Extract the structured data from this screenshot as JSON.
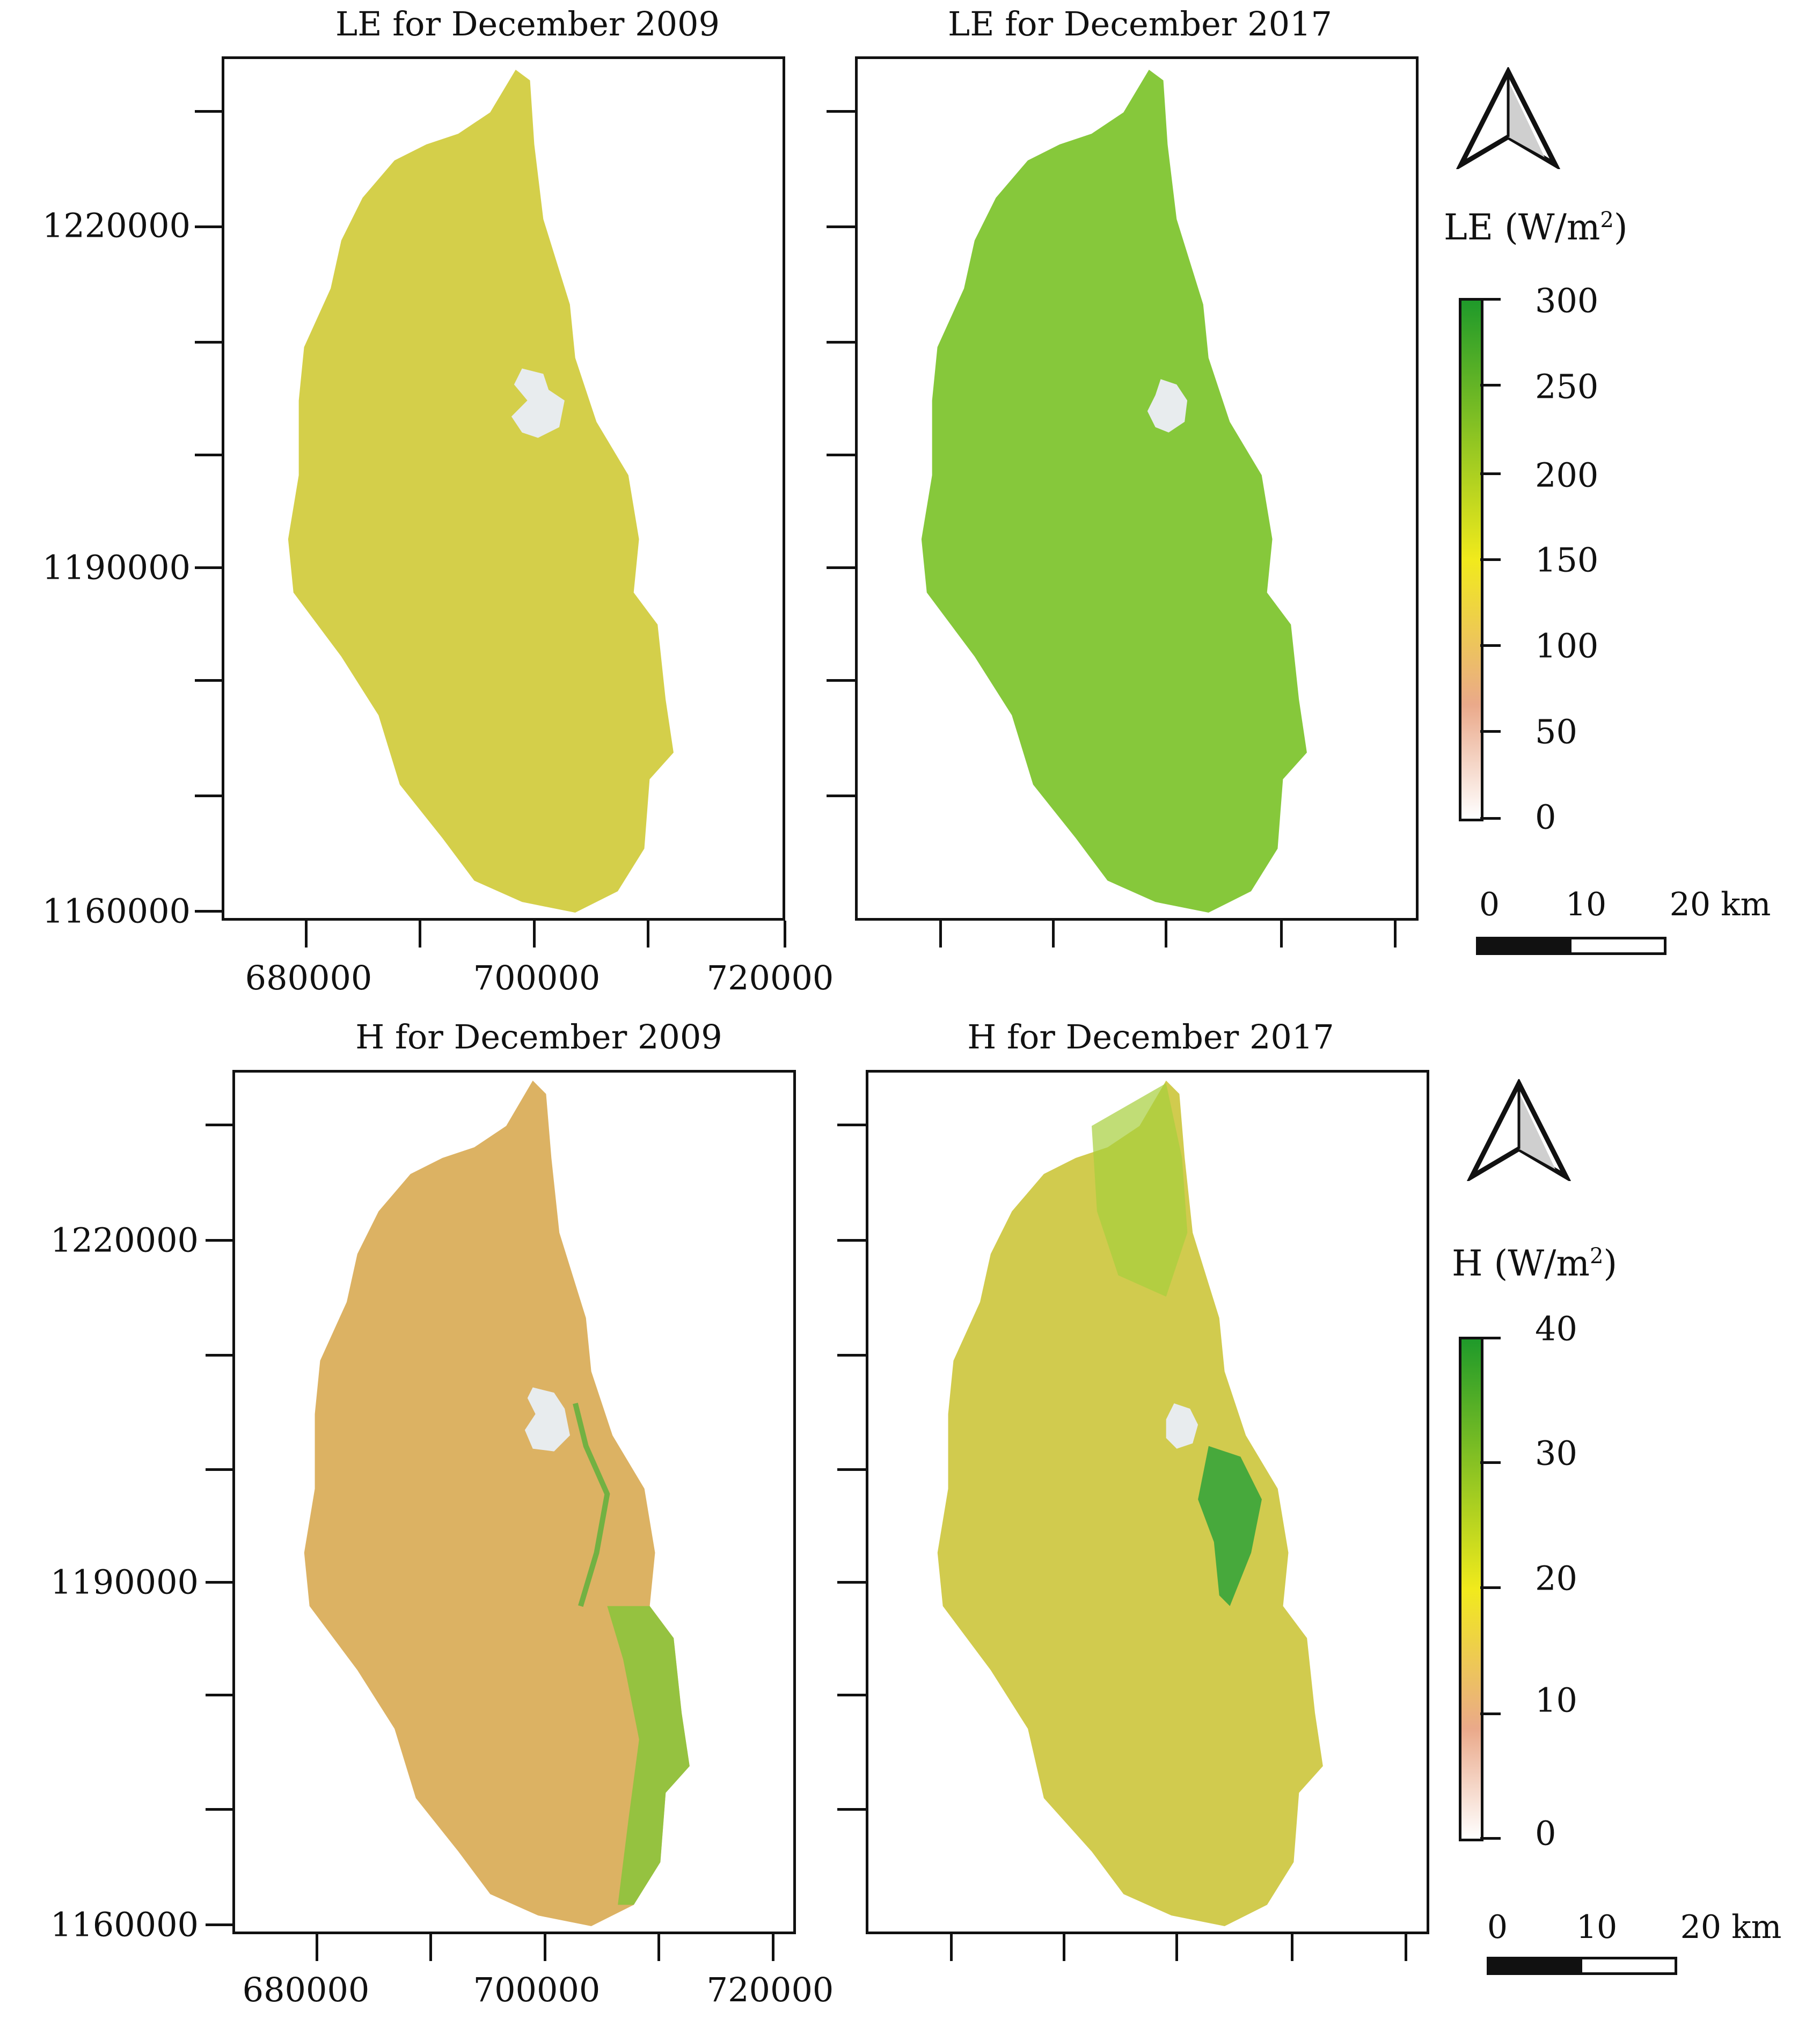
{
  "maps": [
    {
      "title": "LE for December 2009",
      "theme": "le2009"
    },
    {
      "title": "LE for December 2017",
      "theme": "le2017"
    },
    {
      "title": "H for December 2009",
      "theme": "h2009"
    },
    {
      "title": "H for December 2017",
      "theme": "h2017"
    }
  ],
  "y_labels": [
    "1220000",
    "1190000",
    "1160000"
  ],
  "x_labels": [
    "680000",
    "700000",
    "720000"
  ],
  "legends": [
    {
      "variable": "LE",
      "unit": "(W/m",
      "sup": "2",
      "close": ")",
      "ticks": [
        "300",
        "250",
        "200",
        "150",
        "100",
        "50",
        "0"
      ]
    },
    {
      "variable": "H",
      "unit": "(W/m",
      "sup": "2",
      "close": ")",
      "ticks": [
        "40",
        "30",
        "20",
        "10",
        "0"
      ]
    }
  ],
  "scalebar": {
    "labels": [
      "0",
      "10",
      "20 km"
    ]
  },
  "colors": {
    "le2009": "#d4cf4a",
    "le2017": "#86c83b",
    "h2009": "#dcb263",
    "h2017": "#d1cb4e",
    "ramp_top": "#1f9a2a",
    "ramp_mid": "#f1ea1c",
    "ramp_low": "#eaa98a",
    "ramp_bottom": "#ffffff"
  }
}
